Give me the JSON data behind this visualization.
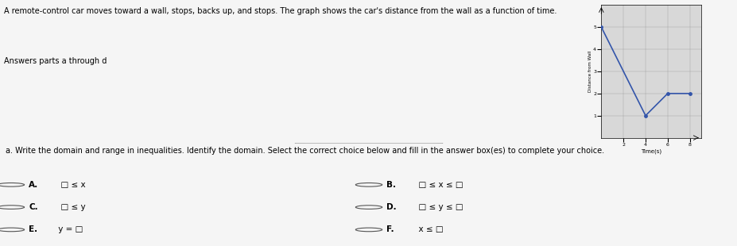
{
  "title_line1": "A remote-control car moves toward a wall, stops, backs up, and stops. The graph shows the car's distance from the wall as a function of time.",
  "title_line2": "Answers parts a through d",
  "graph": {
    "x_data": [
      0,
      4,
      6,
      8
    ],
    "y_data": [
      5,
      1,
      2,
      2
    ],
    "xlabel": "Time(s)",
    "ylabel": "Distance from Wall",
    "xlim": [
      0,
      9
    ],
    "ylim": [
      0,
      6
    ],
    "xticks": [
      2,
      4,
      6,
      8
    ],
    "yticks": [
      1,
      2,
      3,
      4,
      5
    ],
    "line_color": "#3355aa",
    "marker_color": "#3355aa",
    "grid": true
  },
  "question_text": "a. Write the domain and range in inequalities. Identify the domain. Select the correct choice below and fill in the answer box(es) to complete your choice.",
  "choices_left": [
    {
      "label": "A.",
      "text": "  □ ≤ x"
    },
    {
      "label": "C.",
      "text": "  □ ≤ y"
    },
    {
      "label": "E.",
      "text": " y = □"
    }
  ],
  "choices_right": [
    {
      "label": "B.",
      "text": "  □ ≤ x ≤ □"
    },
    {
      "label": "D.",
      "text": "  □ ≤ y ≤ □"
    },
    {
      "label": "F.",
      "text": "  x ≤ □"
    }
  ],
  "top_bg": "#f5f5f5",
  "bot_bg": "#e8e8e8",
  "graph_bg": "#d8d8d8",
  "separator_color": "#aaaaaa"
}
